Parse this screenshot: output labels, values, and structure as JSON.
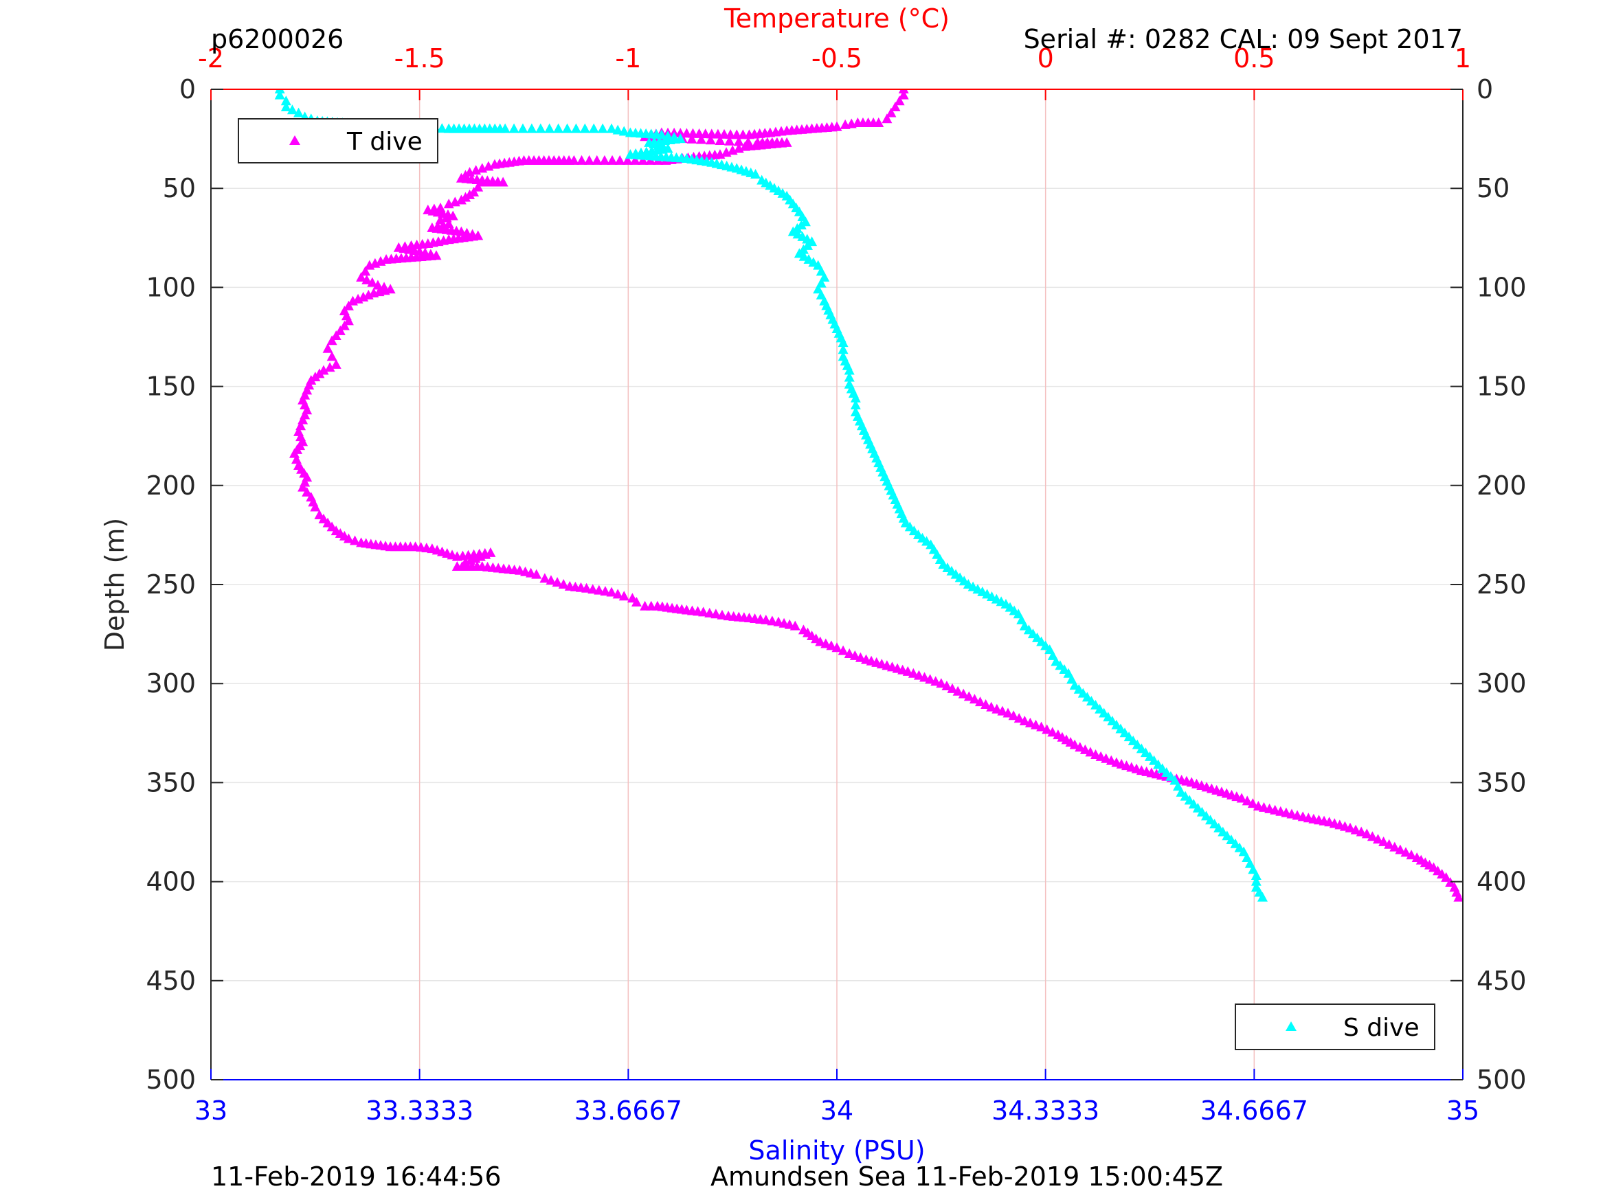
{
  "header": {
    "profile_id": "p6200026",
    "serial": "Serial #: 0282  CAL: 09 Sept 2017"
  },
  "footer": {
    "left": "11-Feb-2019 16:44:56",
    "right": "Amundsen Sea 11-Feb-2019 15:00:45Z"
  },
  "colors": {
    "temperature": "#ff00ff",
    "salinity": "#00ffff",
    "temp_axis": "#ff0000",
    "sal_axis": "#0000ff",
    "grid_vertical": "#f4c0c0",
    "grid_horizontal": "#e6e6e6"
  },
  "chart_data": {
    "type": "scatter",
    "marker": "triangle",
    "grid": true,
    "axes": {
      "top": {
        "label": "Temperature (°C)",
        "range": [
          -2,
          1
        ],
        "ticks": [
          -2,
          -1.5,
          -1,
          -0.5,
          0,
          0.5,
          1
        ],
        "tick_labels": [
          "-2",
          "-1.5",
          "-1",
          "-0.5",
          "0",
          "0.5",
          "1"
        ]
      },
      "bottom": {
        "label": "Salinity (PSU)",
        "range": [
          33,
          35
        ],
        "ticks": [
          33,
          33.3333,
          33.6667,
          34,
          34.3333,
          34.6667,
          35
        ],
        "tick_labels": [
          "33",
          "33.3333",
          "33.6667",
          "34",
          "34.3333",
          "34.6667",
          "35"
        ]
      },
      "left": {
        "label": "Depth (m)",
        "range": [
          0,
          500
        ],
        "reversed": true,
        "ticks": [
          0,
          50,
          100,
          150,
          200,
          250,
          300,
          350,
          400,
          450,
          500
        ],
        "tick_labels": [
          "0",
          "50",
          "100",
          "150",
          "200",
          "250",
          "300",
          "350",
          "400",
          "450",
          "500"
        ]
      }
    },
    "legends": [
      {
        "label": "T dive",
        "placement": "top-left"
      },
      {
        "label": "S dive",
        "placement": "bottom-right"
      }
    ],
    "series": [
      {
        "name": "T dive",
        "axis": "temperature",
        "points": [
          [
            -0.34,
            0
          ],
          [
            -0.34,
            3
          ],
          [
            -0.35,
            6
          ],
          [
            -0.36,
            9
          ],
          [
            -0.37,
            12
          ],
          [
            -0.38,
            15
          ],
          [
            -0.4,
            17
          ],
          [
            -0.45,
            17
          ],
          [
            -0.48,
            18
          ],
          [
            -0.5,
            19
          ],
          [
            -0.62,
            21
          ],
          [
            -0.66,
            22
          ],
          [
            -0.71,
            23
          ],
          [
            -0.74,
            23
          ],
          [
            -0.92,
            22
          ],
          [
            -0.96,
            24
          ],
          [
            -0.69,
            27
          ],
          [
            -0.62,
            27
          ],
          [
            -0.72,
            29
          ],
          [
            -0.75,
            31
          ],
          [
            -0.78,
            33
          ],
          [
            -0.83,
            34
          ],
          [
            -0.91,
            36
          ],
          [
            -1.13,
            36
          ],
          [
            -1.25,
            36
          ],
          [
            -1.32,
            38
          ],
          [
            -1.35,
            40
          ],
          [
            -1.38,
            42
          ],
          [
            -1.4,
            45
          ],
          [
            -1.3,
            47
          ],
          [
            -1.35,
            47
          ],
          [
            -1.37,
            52
          ],
          [
            -1.4,
            56
          ],
          [
            -1.43,
            58
          ],
          [
            -1.45,
            60
          ],
          [
            -1.48,
            61
          ],
          [
            -1.42,
            64
          ],
          [
            -1.45,
            66
          ],
          [
            -1.43,
            68
          ],
          [
            -1.47,
            70
          ],
          [
            -1.4,
            72
          ],
          [
            -1.36,
            74
          ],
          [
            -1.43,
            76
          ],
          [
            -1.48,
            78
          ],
          [
            -1.52,
            79
          ],
          [
            -1.55,
            80
          ],
          [
            -1.5,
            82
          ],
          [
            -1.46,
            84
          ],
          [
            -1.58,
            86
          ],
          [
            -1.62,
            89
          ],
          [
            -1.63,
            92
          ],
          [
            -1.64,
            95
          ],
          [
            -1.6,
            99
          ],
          [
            -1.57,
            101
          ],
          [
            -1.61,
            103
          ],
          [
            -1.66,
            107
          ],
          [
            -1.68,
            112
          ],
          [
            -1.67,
            117
          ],
          [
            -1.69,
            122
          ],
          [
            -1.71,
            127
          ],
          [
            -1.72,
            131
          ],
          [
            -1.71,
            135
          ],
          [
            -1.7,
            139
          ],
          [
            -1.73,
            142
          ],
          [
            -1.76,
            147
          ],
          [
            -1.77,
            152
          ],
          [
            -1.78,
            157
          ],
          [
            -1.77,
            162
          ],
          [
            -1.78,
            167
          ],
          [
            -1.79,
            173
          ],
          [
            -1.78,
            178
          ],
          [
            -1.8,
            184
          ],
          [
            -1.79,
            190
          ],
          [
            -1.77,
            196
          ],
          [
            -1.78,
            201
          ],
          [
            -1.76,
            206
          ],
          [
            -1.75,
            211
          ],
          [
            -1.74,
            215
          ],
          [
            -1.72,
            219
          ],
          [
            -1.7,
            223
          ],
          [
            -1.67,
            227
          ],
          [
            -1.64,
            229
          ],
          [
            -1.57,
            231
          ],
          [
            -1.51,
            231
          ],
          [
            -1.47,
            232
          ],
          [
            -1.41,
            236
          ],
          [
            -1.33,
            234
          ],
          [
            -1.39,
            239
          ],
          [
            -1.41,
            241
          ],
          [
            -1.35,
            241
          ],
          [
            -1.26,
            243
          ],
          [
            -1.22,
            245
          ],
          [
            -1.2,
            247
          ],
          [
            -1.17,
            249
          ],
          [
            -1.14,
            251
          ],
          [
            -1.1,
            252
          ],
          [
            -1.07,
            253
          ],
          [
            -1.04,
            254
          ],
          [
            -1.01,
            256
          ],
          [
            -0.99,
            257
          ],
          [
            -0.98,
            259
          ],
          [
            -0.96,
            261
          ],
          [
            -0.93,
            261
          ],
          [
            -0.86,
            263
          ],
          [
            -0.82,
            264
          ],
          [
            -0.79,
            265
          ],
          [
            -0.76,
            266
          ],
          [
            -0.71,
            267
          ],
          [
            -0.67,
            268
          ],
          [
            -0.64,
            269
          ],
          [
            -0.6,
            271
          ],
          [
            -0.58,
            273
          ],
          [
            -0.56,
            276
          ],
          [
            -0.54,
            279
          ],
          [
            -0.5,
            282
          ],
          [
            -0.47,
            285
          ],
          [
            -0.43,
            288
          ],
          [
            -0.38,
            291
          ],
          [
            -0.33,
            294
          ],
          [
            -0.29,
            297
          ],
          [
            -0.25,
            300
          ],
          [
            -0.21,
            304
          ],
          [
            -0.17,
            308
          ],
          [
            -0.13,
            312
          ],
          [
            -0.09,
            315
          ],
          [
            -0.05,
            319
          ],
          [
            -0.01,
            322
          ],
          [
            0.03,
            326
          ],
          [
            0.07,
            331
          ],
          [
            0.12,
            336
          ],
          [
            0.17,
            340
          ],
          [
            0.23,
            344
          ],
          [
            0.29,
            347
          ],
          [
            0.35,
            350
          ],
          [
            0.41,
            354
          ],
          [
            0.47,
            358
          ],
          [
            0.51,
            362
          ],
          [
            0.55,
            364
          ],
          [
            0.59,
            366
          ],
          [
            0.63,
            368
          ],
          [
            0.68,
            370
          ],
          [
            0.73,
            373
          ],
          [
            0.77,
            376
          ],
          [
            0.81,
            380
          ],
          [
            0.85,
            384
          ],
          [
            0.89,
            388
          ],
          [
            0.93,
            393
          ],
          [
            0.96,
            398
          ],
          [
            0.98,
            403
          ],
          [
            0.99,
            408
          ]
        ]
      },
      {
        "name": "S dive",
        "axis": "salinity",
        "points": [
          [
            33.11,
            0
          ],
          [
            33.11,
            3
          ],
          [
            33.12,
            6
          ],
          [
            33.12,
            9
          ],
          [
            33.14,
            12
          ],
          [
            33.15,
            14
          ],
          [
            33.17,
            16
          ],
          [
            33.21,
            17
          ],
          [
            33.25,
            18
          ],
          [
            33.38,
            20
          ],
          [
            33.47,
            20
          ],
          [
            33.64,
            20
          ],
          [
            33.67,
            22
          ],
          [
            33.72,
            23
          ],
          [
            33.75,
            25
          ],
          [
            33.7,
            27
          ],
          [
            33.73,
            30
          ],
          [
            33.67,
            33
          ],
          [
            33.76,
            35
          ],
          [
            33.8,
            37
          ],
          [
            33.84,
            40
          ],
          [
            33.87,
            43
          ],
          [
            33.88,
            46
          ],
          [
            33.9,
            50
          ],
          [
            33.92,
            54
          ],
          [
            33.93,
            58
          ],
          [
            33.94,
            62
          ],
          [
            33.95,
            67
          ],
          [
            33.93,
            72
          ],
          [
            33.96,
            77
          ],
          [
            33.94,
            83
          ],
          [
            33.97,
            89
          ],
          [
            33.98,
            95
          ],
          [
            33.97,
            101
          ],
          [
            33.98,
            107
          ],
          [
            33.99,
            114
          ],
          [
            34.0,
            121
          ],
          [
            34.01,
            128
          ],
          [
            34.01,
            135
          ],
          [
            34.02,
            142
          ],
          [
            34.02,
            149
          ],
          [
            34.03,
            156
          ],
          [
            34.03,
            163
          ],
          [
            34.04,
            170
          ],
          [
            34.05,
            177
          ],
          [
            34.06,
            184
          ],
          [
            34.07,
            191
          ],
          [
            34.08,
            198
          ],
          [
            34.09,
            205
          ],
          [
            34.1,
            212
          ],
          [
            34.11,
            219
          ],
          [
            34.13,
            225
          ],
          [
            34.15,
            230
          ],
          [
            34.16,
            235
          ],
          [
            34.17,
            240
          ],
          [
            34.19,
            245
          ],
          [
            34.21,
            250
          ],
          [
            34.24,
            255
          ],
          [
            34.27,
            260
          ],
          [
            34.29,
            265
          ],
          [
            34.3,
            271
          ],
          [
            34.32,
            277
          ],
          [
            34.34,
            283
          ],
          [
            34.35,
            289
          ],
          [
            34.37,
            295
          ],
          [
            34.38,
            301
          ],
          [
            34.4,
            307
          ],
          [
            34.42,
            313
          ],
          [
            34.44,
            319
          ],
          [
            34.46,
            325
          ],
          [
            34.48,
            331
          ],
          [
            34.5,
            337
          ],
          [
            34.52,
            343
          ],
          [
            34.54,
            349
          ],
          [
            34.55,
            355
          ],
          [
            34.57,
            361
          ],
          [
            34.59,
            367
          ],
          [
            34.61,
            373
          ],
          [
            34.63,
            379
          ],
          [
            34.65,
            385
          ],
          [
            34.66,
            391
          ],
          [
            34.67,
            397
          ],
          [
            34.67,
            403
          ],
          [
            34.68,
            408
          ]
        ]
      }
    ]
  }
}
